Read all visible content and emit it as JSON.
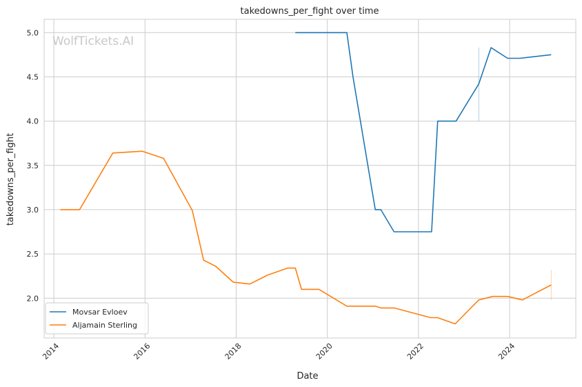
{
  "chart_data": {
    "type": "line",
    "title": "takedowns_per_fight over time",
    "xlabel": "Date",
    "ylabel": "takedowns_per_fight",
    "watermark": "WolfTickets.AI",
    "x_ticks": [
      "2014",
      "2016",
      "2018",
      "2020",
      "2022",
      "2024"
    ],
    "y_ticks": [
      "2.0",
      "2.5",
      "3.0",
      "3.5",
      "4.0",
      "4.5",
      "5.0"
    ],
    "xlim": [
      "2013-10-15",
      "2025-06-15"
    ],
    "ylim": [
      1.55,
      5.15
    ],
    "grid": true,
    "legend_position": "lower-left",
    "series": [
      {
        "name": "Movsar Evloev",
        "color": "#1f77b4",
        "points": [
          [
            "2019-04-20",
            5.0
          ],
          [
            "2019-10-26",
            5.0
          ],
          [
            "2020-06-06",
            5.0
          ],
          [
            "2020-07-25",
            4.5
          ],
          [
            "2021-01-20",
            3.0
          ],
          [
            "2021-03-06",
            3.0
          ],
          [
            "2021-06-19",
            2.75
          ],
          [
            "2022-04-16",
            2.75
          ],
          [
            "2022-06-04",
            4.0
          ],
          [
            "2022-10-29",
            4.0
          ],
          [
            "2023-04-29",
            4.42
          ],
          [
            "2023-08-05",
            4.83
          ],
          [
            "2023-12-16",
            4.71
          ],
          [
            "2024-03-23",
            4.71
          ],
          [
            "2024-11-30",
            4.75
          ]
        ]
      },
      {
        "name": "Aljamain Sterling",
        "color": "#ff7f0e",
        "points": [
          [
            "2014-02-22",
            3.0
          ],
          [
            "2014-07-26",
            3.0
          ],
          [
            "2015-04-18",
            3.64
          ],
          [
            "2015-12-10",
            3.66
          ],
          [
            "2016-05-29",
            3.58
          ],
          [
            "2017-01-15",
            2.99
          ],
          [
            "2017-04-15",
            2.43
          ],
          [
            "2017-07-22",
            2.36
          ],
          [
            "2017-12-09",
            2.18
          ],
          [
            "2018-04-21",
            2.16
          ],
          [
            "2018-09-08",
            2.26
          ],
          [
            "2019-02-17",
            2.34
          ],
          [
            "2019-04-20",
            2.34
          ],
          [
            "2019-06-08",
            2.1
          ],
          [
            "2019-10-26",
            2.1
          ],
          [
            "2020-06-06",
            1.91
          ],
          [
            "2021-01-20",
            1.91
          ],
          [
            "2021-03-06",
            1.89
          ],
          [
            "2021-06-19",
            1.89
          ],
          [
            "2022-04-09",
            1.78
          ],
          [
            "2022-06-04",
            1.78
          ],
          [
            "2022-10-22",
            1.71
          ],
          [
            "2023-04-29",
            1.98
          ],
          [
            "2023-08-19",
            2.02
          ],
          [
            "2023-12-16",
            2.02
          ],
          [
            "2024-04-13",
            1.98
          ],
          [
            "2024-11-30",
            2.15
          ]
        ]
      }
    ],
    "error_bars": [
      {
        "series": "Movsar Evloev",
        "x": "2023-04-29",
        "low": 4.0,
        "high": 4.83
      },
      {
        "series": "Aljamain Sterling",
        "x": "2024-11-30",
        "low": 1.98,
        "high": 2.32
      }
    ]
  }
}
